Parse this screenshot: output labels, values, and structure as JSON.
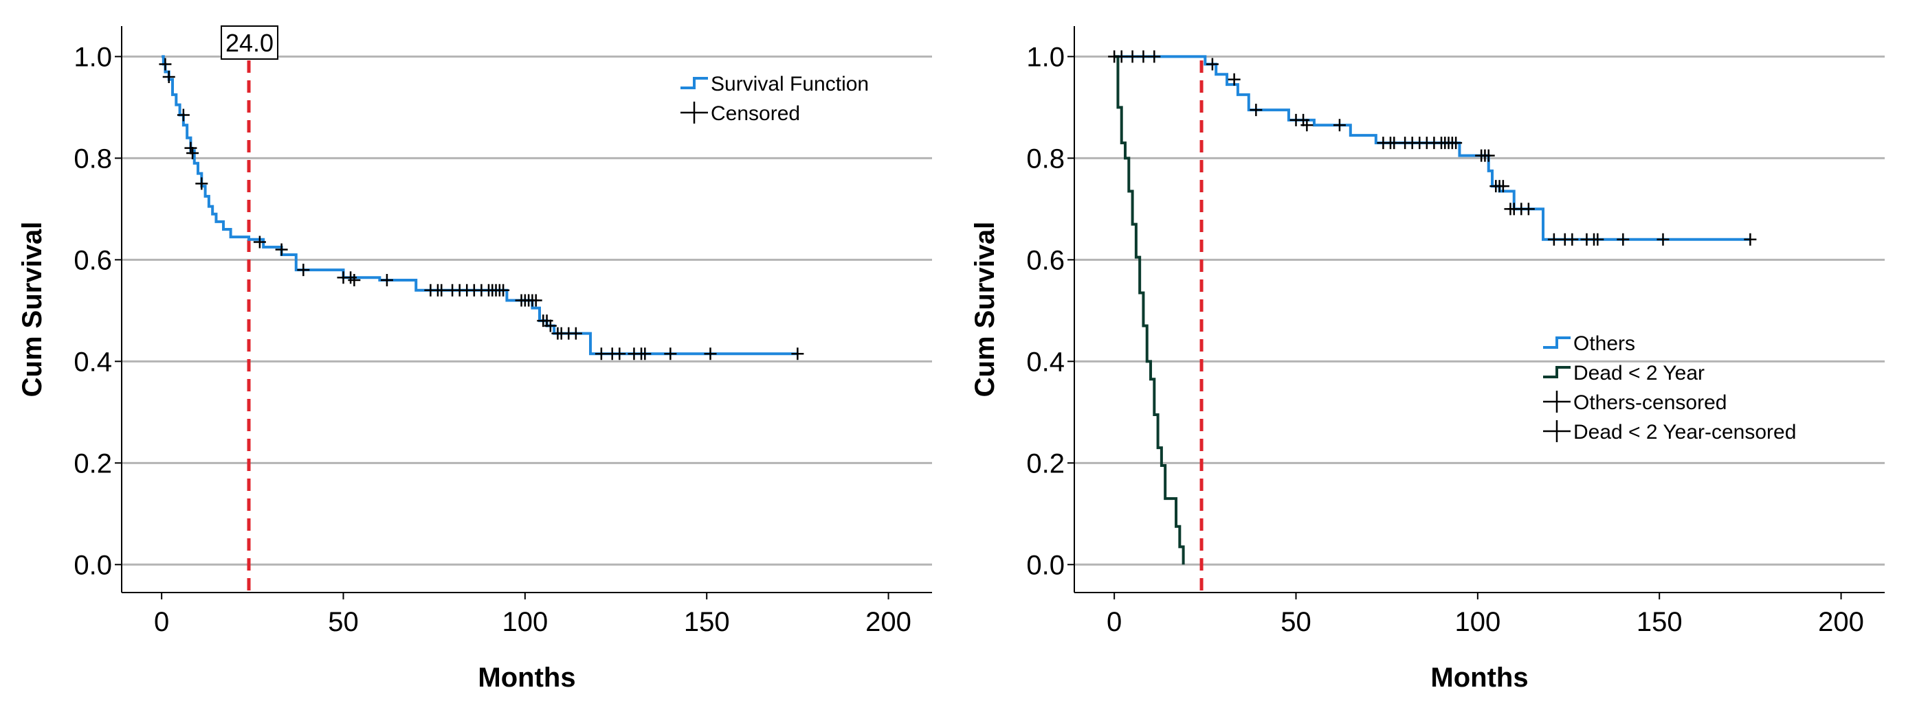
{
  "chart_data": [
    {
      "type": "line",
      "step": true,
      "xlabel": "Months",
      "ylabel": "Cum Survival",
      "xlim": [
        -11,
        212
      ],
      "ylim": [
        -0.055,
        1.06
      ],
      "xticks": [
        "0",
        "50",
        "100",
        "150",
        "200"
      ],
      "yticks": [
        "0.0",
        "0.2",
        "0.4",
        "0.6",
        "0.8",
        "1.0"
      ],
      "grid": "horizontal",
      "reference_line": {
        "x": 24,
        "label": "24.0",
        "color": "#e0242c"
      },
      "legend": {
        "position": "top-right",
        "entries": [
          "Survival Function",
          "Censored"
        ]
      },
      "series": [
        {
          "name": "Survival Function",
          "color": "#1f87dc",
          "x": [
            0,
            0.5,
            1,
            2,
            3,
            4,
            5,
            6,
            7,
            8,
            9,
            10,
            11,
            12,
            13,
            14,
            15,
            17,
            19,
            21,
            24,
            28,
            33,
            37,
            50,
            60,
            70,
            95,
            102,
            104,
            106,
            108,
            110,
            118,
            175
          ],
          "y": [
            1.0,
            0.985,
            0.97,
            0.955,
            0.925,
            0.905,
            0.885,
            0.865,
            0.84,
            0.815,
            0.79,
            0.77,
            0.745,
            0.725,
            0.705,
            0.69,
            0.675,
            0.66,
            0.645,
            0.645,
            0.64,
            0.625,
            0.61,
            0.58,
            0.565,
            0.56,
            0.54,
            0.52,
            0.505,
            0.48,
            0.47,
            0.455,
            0.455,
            0.415,
            0.415
          ]
        },
        {
          "name": "Censored",
          "marker": "+",
          "x": [
            1,
            2,
            6,
            8,
            8.5,
            11,
            27,
            33,
            39,
            50,
            52,
            53,
            62,
            74,
            76,
            77,
            80,
            82,
            84,
            86,
            88,
            90,
            91,
            92,
            93,
            94,
            99,
            100,
            101,
            102,
            103,
            105,
            106,
            107,
            109,
            110,
            112,
            114,
            121,
            124,
            126,
            130,
            132,
            133,
            140,
            151,
            175
          ],
          "y": [
            0.985,
            0.96,
            0.885,
            0.82,
            0.81,
            0.75,
            0.635,
            0.62,
            0.58,
            0.565,
            0.565,
            0.56,
            0.56,
            0.54,
            0.54,
            0.54,
            0.54,
            0.54,
            0.54,
            0.54,
            0.54,
            0.54,
            0.54,
            0.54,
            0.54,
            0.54,
            0.52,
            0.52,
            0.52,
            0.52,
            0.52,
            0.48,
            0.48,
            0.47,
            0.455,
            0.455,
            0.455,
            0.455,
            0.415,
            0.415,
            0.415,
            0.415,
            0.415,
            0.415,
            0.415,
            0.415,
            0.415
          ]
        }
      ]
    },
    {
      "type": "line",
      "step": true,
      "xlabel": "Months",
      "ylabel": "Cum Survival",
      "xlim": [
        -11,
        212
      ],
      "ylim": [
        -0.055,
        1.06
      ],
      "xticks": [
        "0",
        "50",
        "100",
        "150",
        "200"
      ],
      "yticks": [
        "0.0",
        "0.2",
        "0.4",
        "0.6",
        "0.8",
        "1.0"
      ],
      "grid": "horizontal",
      "reference_line": {
        "x": 24,
        "color": "#e0242c"
      },
      "legend": {
        "position": "right",
        "entries": [
          "Others",
          "Dead < 2 Year",
          "Others-censored",
          "Dead < 2 Year-censored"
        ]
      },
      "series": [
        {
          "name": "Others",
          "color": "#1f87dc",
          "x": [
            0,
            25,
            28,
            31,
            34,
            37,
            48,
            55,
            65,
            72,
            95,
            103,
            104,
            106,
            110,
            118,
            175
          ],
          "y": [
            1.0,
            0.985,
            0.965,
            0.945,
            0.925,
            0.895,
            0.875,
            0.865,
            0.845,
            0.83,
            0.805,
            0.775,
            0.745,
            0.735,
            0.7,
            0.64,
            0.64
          ]
        },
        {
          "name": "Dead < 2 Year",
          "color": "#0b3b2e",
          "x": [
            0,
            1,
            2,
            3,
            4,
            5,
            6,
            7,
            8,
            9,
            10,
            11,
            12,
            13,
            14,
            15,
            17,
            18,
            19
          ],
          "y": [
            1.0,
            0.9,
            0.83,
            0.8,
            0.735,
            0.67,
            0.605,
            0.535,
            0.47,
            0.4,
            0.365,
            0.295,
            0.23,
            0.195,
            0.13,
            0.13,
            0.075,
            0.035,
            0.0
          ]
        },
        {
          "name": "Others-censored",
          "marker": "+",
          "x": [
            0,
            2,
            5,
            8,
            11,
            27,
            33,
            39,
            50,
            52,
            53,
            62,
            74,
            76,
            77,
            80,
            82,
            84,
            86,
            88,
            90,
            91,
            92,
            93,
            94,
            101,
            102,
            103,
            105,
            106,
            107,
            109,
            110,
            112,
            114,
            121,
            124,
            126,
            130,
            132,
            133,
            140,
            151,
            175
          ],
          "y": [
            1.0,
            1.0,
            1.0,
            1.0,
            1.0,
            0.985,
            0.955,
            0.895,
            0.875,
            0.875,
            0.865,
            0.865,
            0.83,
            0.83,
            0.83,
            0.83,
            0.83,
            0.83,
            0.83,
            0.83,
            0.83,
            0.83,
            0.83,
            0.83,
            0.83,
            0.805,
            0.805,
            0.805,
            0.745,
            0.745,
            0.745,
            0.7,
            0.7,
            0.7,
            0.7,
            0.64,
            0.64,
            0.64,
            0.64,
            0.64,
            0.64,
            0.64,
            0.64,
            0.64
          ]
        }
      ]
    }
  ]
}
